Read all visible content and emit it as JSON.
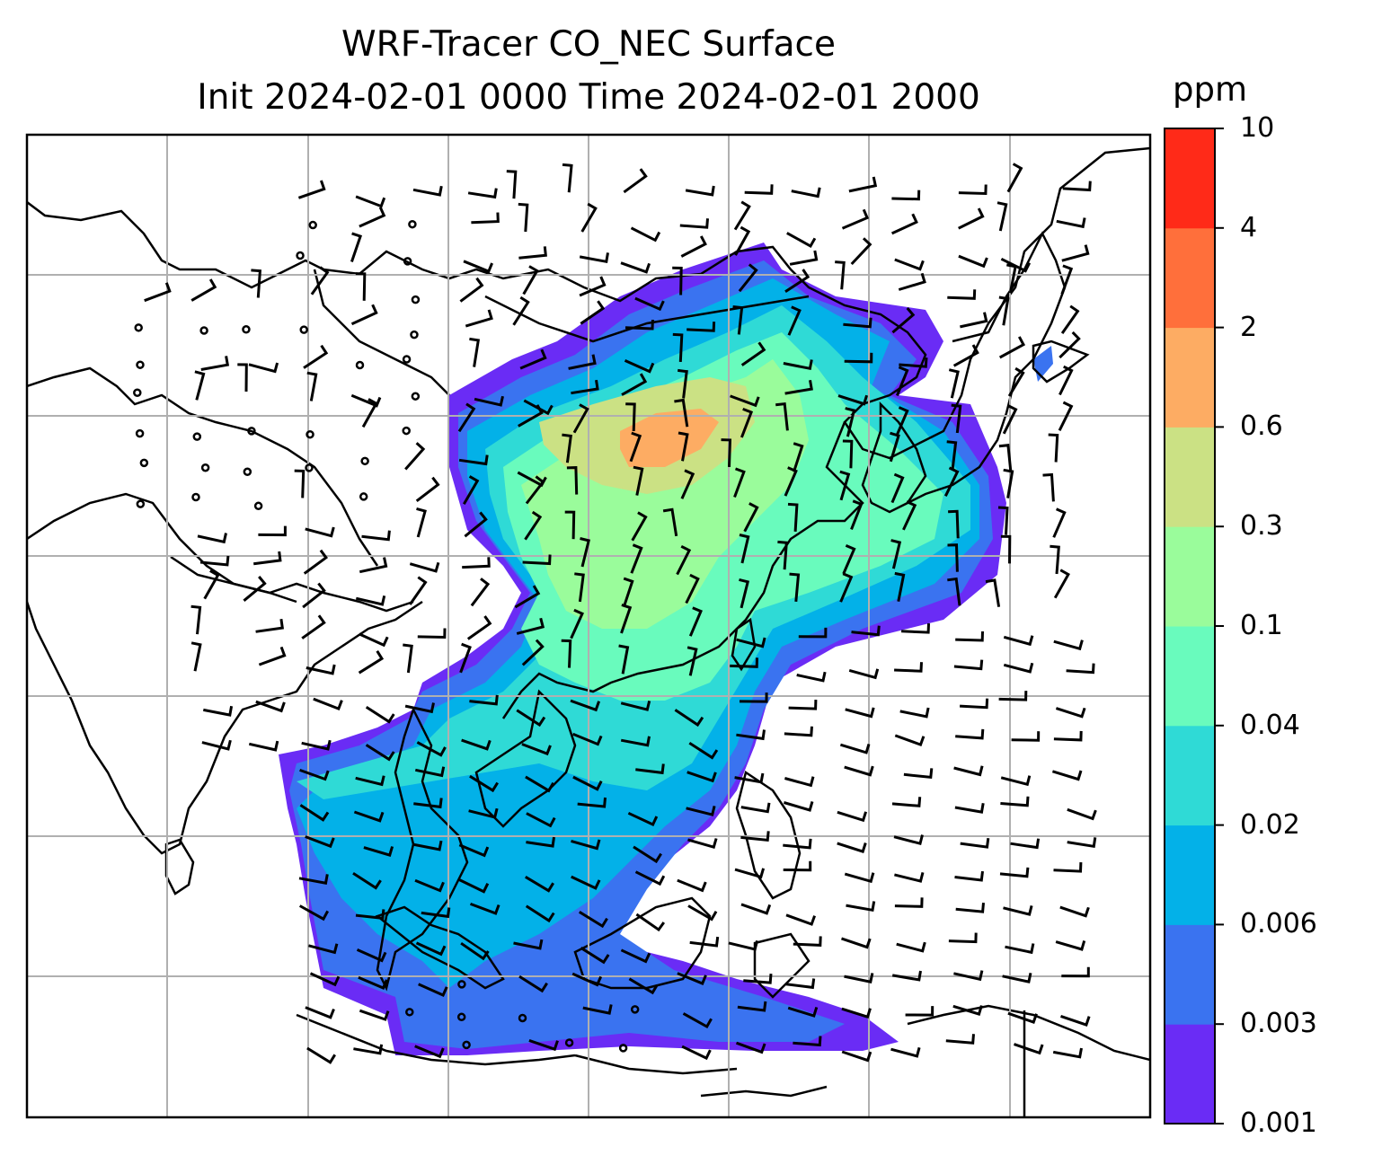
{
  "title": {
    "line1": "WRF-Tracer CO_NEC Surface",
    "line2": "Init 2024-02-01 0000 Time 2024-02-01 2000"
  },
  "colorbar": {
    "unit": "ppm",
    "levels": [
      "0.001",
      "0.003",
      "0.006",
      "0.02",
      "0.04",
      "0.1",
      "0.3",
      "0.6",
      "2",
      "4",
      "10"
    ],
    "colors": [
      "#6a2cf5",
      "#3a73f0",
      "#03b1e8",
      "#2fdad6",
      "#69fbbd",
      "#9afc9b",
      "#cbe184",
      "#fdac63",
      "#ff6f3b",
      "#ff2a18"
    ]
  },
  "map": {
    "gridlines": true,
    "grid_color": "#b0b0b0"
  }
}
